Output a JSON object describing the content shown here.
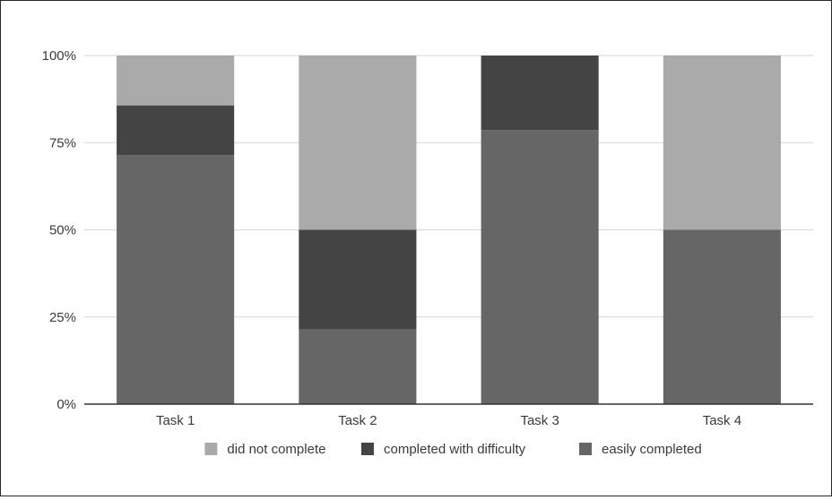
{
  "chart_data": {
    "type": "bar",
    "stacked": true,
    "percent_stacked": true,
    "categories": [
      "Task 1",
      "Task 2",
      "Task 3",
      "Task 4"
    ],
    "series": [
      {
        "name": "easily completed",
        "color": "#666666",
        "values": [
          71.4,
          21.4,
          78.6,
          50
        ]
      },
      {
        "name": "completed with difficulty",
        "color": "#444444",
        "values": [
          14.3,
          28.6,
          21.4,
          0
        ]
      },
      {
        "name": "did not complete",
        "color": "#aaaaaa",
        "values": [
          14.3,
          50,
          0,
          50
        ]
      }
    ],
    "ylim": [
      0,
      100
    ],
    "yticks": [
      "0%",
      "25%",
      "50%",
      "75%",
      "100%"
    ],
    "ytick_values": [
      0,
      25,
      50,
      75,
      100
    ],
    "grid": true,
    "legend_position": "bottom",
    "legend_order": [
      "did not complete",
      "completed with difficulty",
      "easily completed"
    ],
    "title": "",
    "xlabel": "",
    "ylabel": ""
  }
}
